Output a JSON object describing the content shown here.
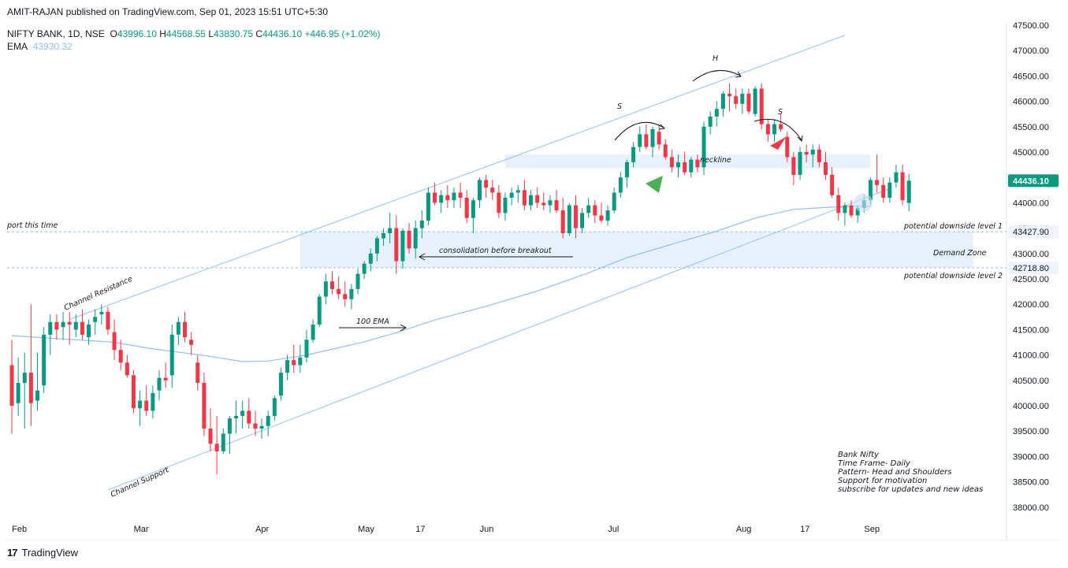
{
  "publisher_line": "AMIT-RAJAN published on TradingView.com, Sep 01, 2023 15:51 UTC+5:30",
  "legend": {
    "symbol": "NIFTY BANK, 1D, NSE",
    "o_label": "O",
    "o_value": "43996.10",
    "h_label": "H",
    "h_value": "44568.55",
    "l_label": "L",
    "l_value": "43830.75",
    "c_label": "C",
    "c_value": "44436.10",
    "change": "+446.95 (+1.02%)",
    "ema_label": "EMA",
    "ema_value": "43930.32"
  },
  "footer": {
    "brand": "TradingView",
    "logo_glyph": "17"
  },
  "colors": {
    "up": "#089981",
    "down": "#f23645",
    "ema": "#90bff9",
    "channel": "#90bff9",
    "zone_fill": "#e3effc",
    "price_tag": "#089981",
    "level_tag": "#2962ff",
    "level_tag_bg": "#eef3fd",
    "grid": "#ffffff",
    "text": "#131722",
    "green_arrow": "#4caf50",
    "red_arrow": "#f23645"
  },
  "annotations": {
    "channel_resistance": "Channel Resistance",
    "channel_support": "Channel Support",
    "ema_label": "100 EMA",
    "consolidation": "consolidation before breakout",
    "neckline": "neckline",
    "demand_zone": "Demand Zone",
    "support_partial": "port this time",
    "downside_1": "potential downside level 1",
    "downside_2": "potential downside level 2",
    "left_shoulder": "S",
    "head": "H",
    "right_shoulder": "S"
  },
  "notes": [
    "Bank Nifty",
    "Time Frame- Daily",
    "Pattern- Head and Shoulders",
    "Support for motivation",
    "subscribe for updates and new ideas"
  ],
  "chart_data": {
    "type": "candlestick",
    "symbol": "NIFTY BANK",
    "timeframe": "1D",
    "ylim": [
      37800,
      47600
    ],
    "y_ticks": [
      "47500.00",
      "47000.00",
      "46500.00",
      "46000.00",
      "45500.00",
      "45000.00",
      "44500.00",
      "44000.00",
      "43500.00",
      "43000.00",
      "42500.00",
      "42000.00",
      "41500.00",
      "41000.00",
      "40500.00",
      "40000.00",
      "39500.00",
      "39000.00",
      "38500.00",
      "38000.00"
    ],
    "x_ticks": [
      {
        "label": "Feb",
        "index": 1
      },
      {
        "label": "Mar",
        "index": 20
      },
      {
        "label": "Apr",
        "index": 39
      },
      {
        "label": "May",
        "index": 55
      },
      {
        "label": "17",
        "index": 64
      },
      {
        "label": "Jun",
        "index": 74
      },
      {
        "label": "Jul",
        "index": 94
      },
      {
        "label": "Aug",
        "index": 114
      },
      {
        "label": "17",
        "index": 124
      },
      {
        "label": "Sep",
        "index": 134
      }
    ],
    "price_tags": [
      {
        "value": 44436.1,
        "label": "44436.10",
        "style": "last"
      },
      {
        "value": 43427.9,
        "label": "43427.90",
        "style": "level"
      },
      {
        "value": 42718.8,
        "label": "42718.80",
        "style": "level"
      }
    ],
    "zones": [
      {
        "name": "demand-zone",
        "from_index": 45,
        "to_index": 150,
        "low": 42718.8,
        "high": 43427.9
      },
      {
        "name": "neckline-zone",
        "from_index": 77,
        "to_index": 134,
        "low": 44680,
        "high": 44950
      }
    ],
    "levels": [
      {
        "name": "downside-1",
        "value": 43427.9
      },
      {
        "name": "downside-2",
        "value": 42718.8
      }
    ],
    "channel": {
      "resistance": [
        {
          "i": 9,
          "v": 41700
        },
        {
          "i": 130,
          "v": 47300
        }
      ],
      "support": [
        {
          "i": 15,
          "v": 38340
        },
        {
          "i": 137,
          "v": 44280
        }
      ]
    },
    "ema_100": [
      {
        "i": 0,
        "v": 41380
      },
      {
        "i": 10,
        "v": 41300
      },
      {
        "i": 16,
        "v": 41250
      },
      {
        "i": 22,
        "v": 41120
      },
      {
        "i": 30,
        "v": 40990
      },
      {
        "i": 36,
        "v": 40870
      },
      {
        "i": 40,
        "v": 40880
      },
      {
        "i": 46,
        "v": 41000
      },
      {
        "i": 55,
        "v": 41260
      },
      {
        "i": 60,
        "v": 41440
      },
      {
        "i": 66,
        "v": 41690
      },
      {
        "i": 74,
        "v": 41960
      },
      {
        "i": 82,
        "v": 42260
      },
      {
        "i": 90,
        "v": 42620
      },
      {
        "i": 96,
        "v": 42920
      },
      {
        "i": 104,
        "v": 43220
      },
      {
        "i": 110,
        "v": 43440
      },
      {
        "i": 116,
        "v": 43700
      },
      {
        "i": 122,
        "v": 43870
      },
      {
        "i": 130,
        "v": 43930
      },
      {
        "i": 134,
        "v": 43930
      }
    ],
    "candles": [
      [
        40800,
        41300,
        39450,
        40000
      ],
      [
        40050,
        40950,
        39800,
        40450
      ],
      [
        40450,
        41050,
        39550,
        40650
      ],
      [
        40650,
        42000,
        39600,
        40050
      ],
      [
        40100,
        41050,
        39900,
        40300
      ],
      [
        40400,
        41550,
        40250,
        41400
      ],
      [
        41400,
        41800,
        41000,
        41650
      ],
      [
        41650,
        41800,
        41300,
        41500
      ],
      [
        41550,
        41850,
        41300,
        41650
      ],
      [
        41650,
        41850,
        41200,
        41600
      ],
      [
        41500,
        41800,
        41350,
        41650
      ],
      [
        41650,
        41900,
        41300,
        41400
      ],
      [
        41350,
        41700,
        41200,
        41600
      ],
      [
        41650,
        41900,
        41400,
        41750
      ],
      [
        41800,
        42000,
        41600,
        41850
      ],
      [
        41850,
        41950,
        41400,
        41500
      ],
      [
        41450,
        41700,
        40900,
        41100
      ],
      [
        41100,
        41300,
        40700,
        40850
      ],
      [
        40850,
        41000,
        40550,
        40600
      ],
      [
        40600,
        40700,
        39850,
        39950
      ],
      [
        39950,
        40300,
        39600,
        40100
      ],
      [
        40100,
        40400,
        39800,
        39900
      ],
      [
        39900,
        40400,
        39750,
        40250
      ],
      [
        40300,
        40700,
        40100,
        40550
      ],
      [
        40550,
        40850,
        40350,
        40500
      ],
      [
        40600,
        41600,
        40350,
        41400
      ],
      [
        41400,
        41750,
        41200,
        41650
      ],
      [
        41650,
        41850,
        41250,
        41350
      ],
      [
        41300,
        41450,
        41000,
        41200
      ],
      [
        40850,
        41000,
        40300,
        40450
      ],
      [
        40450,
        40650,
        39400,
        39550
      ],
      [
        39550,
        39950,
        39100,
        39250
      ],
      [
        39250,
        39800,
        38650,
        39100
      ],
      [
        39100,
        39550,
        39050,
        39450
      ],
      [
        39450,
        39800,
        39050,
        39750
      ],
      [
        39750,
        40100,
        39450,
        39800
      ],
      [
        39800,
        40100,
        39550,
        39900
      ],
      [
        39900,
        40150,
        39550,
        39650
      ],
      [
        39650,
        39900,
        39400,
        39550
      ],
      [
        39550,
        39750,
        39350,
        39600
      ],
      [
        39600,
        39900,
        39400,
        39800
      ],
      [
        39800,
        40200,
        39700,
        40150
      ],
      [
        40200,
        40750,
        40100,
        40650
      ],
      [
        40650,
        41000,
        40500,
        40900
      ],
      [
        40900,
        41200,
        40650,
        40800
      ],
      [
        40800,
        41200,
        40650,
        40950
      ],
      [
        40950,
        41500,
        40850,
        41300
      ],
      [
        41300,
        41700,
        41250,
        41600
      ],
      [
        41600,
        42200,
        41550,
        42150
      ],
      [
        42150,
        42600,
        42000,
        42450
      ],
      [
        42450,
        42650,
        42200,
        42300
      ],
      [
        42300,
        42550,
        42100,
        42200
      ],
      [
        42200,
        42450,
        41950,
        42100
      ],
      [
        42100,
        42400,
        41900,
        42300
      ],
      [
        42300,
        42700,
        42200,
        42600
      ],
      [
        42600,
        42850,
        42500,
        42800
      ],
      [
        42800,
        43100,
        42650,
        43000
      ],
      [
        43000,
        43350,
        42850,
        43300
      ],
      [
        43300,
        43500,
        43150,
        43400
      ],
      [
        43400,
        43800,
        43200,
        43500
      ],
      [
        43500,
        43750,
        42600,
        42850
      ],
      [
        42850,
        43500,
        42700,
        43450
      ],
      [
        43450,
        43600,
        43000,
        43100
      ],
      [
        43100,
        43650,
        42900,
        43500
      ],
      [
        43500,
        43850,
        43300,
        43650
      ],
      [
        43650,
        44300,
        43550,
        44200
      ],
      [
        44200,
        44400,
        43950,
        44000
      ],
      [
        44000,
        44250,
        43800,
        44150
      ],
      [
        44150,
        44350,
        43900,
        44050
      ],
      [
        44050,
        44300,
        43900,
        44200
      ],
      [
        44200,
        44400,
        43900,
        44100
      ],
      [
        44100,
        44250,
        43600,
        43700
      ],
      [
        43700,
        44100,
        43400,
        44050
      ],
      [
        44050,
        44500,
        43900,
        44450
      ],
      [
        44450,
        44550,
        44100,
        44300
      ],
      [
        44300,
        44450,
        44050,
        44200
      ],
      [
        44200,
        44350,
        43700,
        43800
      ],
      [
        43800,
        44200,
        43650,
        44100
      ],
      [
        44100,
        44300,
        43950,
        44200
      ],
      [
        44200,
        44350,
        44000,
        44250
      ],
      [
        44250,
        44450,
        43850,
        43950
      ],
      [
        43950,
        44250,
        43850,
        44150
      ],
      [
        44150,
        44300,
        43900,
        44000
      ],
      [
        44000,
        44200,
        43850,
        43950
      ],
      [
        43950,
        44150,
        43800,
        44050
      ],
      [
        44050,
        44250,
        43800,
        43850
      ],
      [
        43850,
        44100,
        43300,
        43400
      ],
      [
        43400,
        44000,
        43350,
        43950
      ],
      [
        43950,
        44150,
        43300,
        43500
      ],
      [
        43500,
        43900,
        43400,
        43800
      ],
      [
        43800,
        44100,
        43700,
        43950
      ],
      [
        43950,
        44050,
        43600,
        43750
      ],
      [
        43750,
        44000,
        43600,
        43650
      ],
      [
        43650,
        43950,
        43550,
        43850
      ],
      [
        43850,
        44300,
        43800,
        44200
      ],
      [
        44200,
        44600,
        44100,
        44500
      ],
      [
        44500,
        44850,
        44300,
        44800
      ],
      [
        44800,
        45200,
        44700,
        45100
      ],
      [
        45100,
        45500,
        45000,
        45350
      ],
      [
        45350,
        45550,
        45050,
        45100
      ],
      [
        45100,
        45500,
        44900,
        45450
      ],
      [
        45400,
        45550,
        45050,
        45150
      ],
      [
        45150,
        45250,
        44850,
        44900
      ],
      [
        44900,
        45050,
        44600,
        44700
      ],
      [
        44700,
        44950,
        44500,
        44800
      ],
      [
        44800,
        45000,
        44550,
        44600
      ],
      [
        44600,
        44900,
        44500,
        44850
      ],
      [
        44850,
        44950,
        44600,
        44700
      ],
      [
        44700,
        45600,
        44550,
        45500
      ],
      [
        45500,
        45800,
        45350,
        45700
      ],
      [
        45700,
        46000,
        45500,
        45850
      ],
      [
        45850,
        46200,
        45700,
        46150
      ],
      [
        46150,
        46350,
        45800,
        46100
      ],
      [
        46100,
        46250,
        45850,
        45950
      ],
      [
        45950,
        46250,
        45750,
        46150
      ],
      [
        46150,
        46250,
        45750,
        45800
      ],
      [
        45750,
        46300,
        45700,
        46250
      ],
      [
        46250,
        46350,
        45450,
        45550
      ],
      [
        45550,
        45650,
        45200,
        45350
      ],
      [
        45350,
        45650,
        45200,
        45550
      ],
      [
        45550,
        45750,
        45400,
        45450
      ],
      [
        45300,
        45400,
        44800,
        44900
      ],
      [
        44900,
        45000,
        44350,
        44550
      ],
      [
        44550,
        45100,
        44450,
        45000
      ],
      [
        45000,
        45150,
        44800,
        44950
      ],
      [
        44950,
        45150,
        44700,
        45050
      ],
      [
        45050,
        45150,
        44700,
        44800
      ],
      [
        44800,
        45000,
        44450,
        44550
      ],
      [
        44550,
        44700,
        44100,
        44150
      ],
      [
        44150,
        44300,
        43650,
        43800
      ],
      [
        43800,
        44000,
        43550,
        43950
      ],
      [
        43950,
        44050,
        43700,
        43750
      ],
      [
        43750,
        43950,
        43600,
        43900
      ],
      [
        43900,
        44150,
        43800,
        44050
      ],
      [
        44050,
        44500,
        43950,
        44450
      ],
      [
        44450,
        44950,
        44200,
        44350
      ],
      [
        44350,
        44500,
        44000,
        44100
      ],
      [
        44100,
        44500,
        44000,
        44400
      ],
      [
        44400,
        44750,
        44300,
        44600
      ],
      [
        44600,
        44750,
        43950,
        44050
      ],
      [
        43996.1,
        44568.55,
        43830.75,
        44436.1
      ]
    ]
  }
}
